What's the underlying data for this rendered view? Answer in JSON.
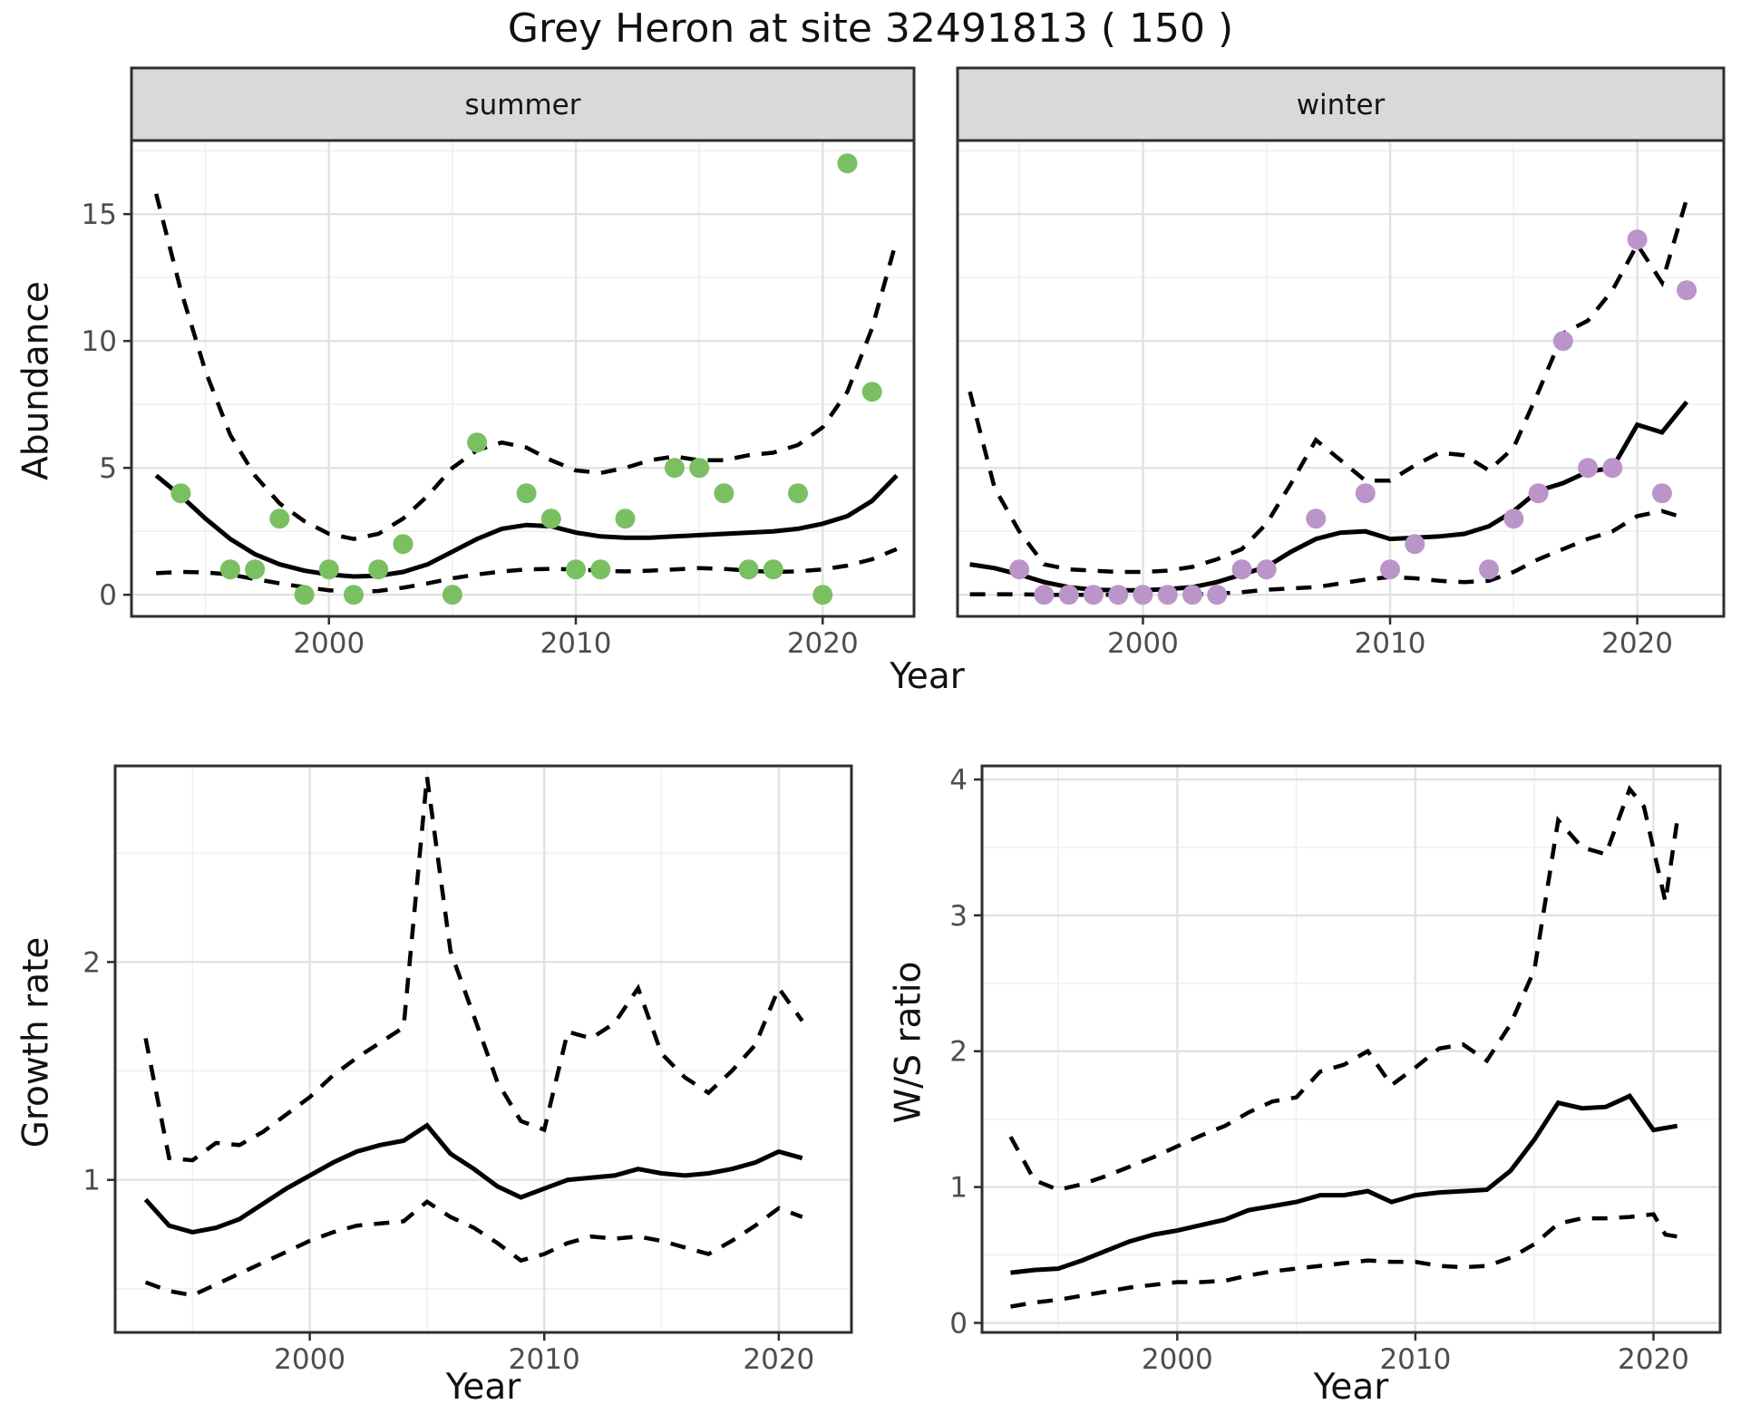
{
  "title": "Grey Heron at site 32491813 ( 150 )",
  "axis_labels": {
    "abundance": "Abundance",
    "growth": "Growth rate",
    "ws": "W/S ratio",
    "year": "Year"
  },
  "facets": {
    "summer": "summer",
    "winter": "winter"
  },
  "colors": {
    "summer_point": "#7ac062",
    "winter_point": "#bb95c9",
    "line": "#000000",
    "strip_bg": "#d9d9d9",
    "strip_text": "#141414",
    "grid_major": "#e2e2e2",
    "grid_minor": "#f0f0f0",
    "panel_border": "#2f2f2f",
    "tick_mark": "#2f2f2f",
    "tick_label": "#4d4d4d",
    "panel_bg": "#ffffff"
  },
  "chart_data": [
    {
      "id": "abundance_summer",
      "type": "line+scatter",
      "facet_label": "summer",
      "ylabel": "Abundance",
      "xlabel": "Year",
      "xlim": [
        1992,
        2023.7
      ],
      "ylim": [
        -0.85,
        17.9
      ],
      "xticks": [
        2000,
        2010,
        2020
      ],
      "xminor": [
        1995,
        2005,
        2015
      ],
      "yticks": [
        0,
        5,
        10,
        15
      ],
      "yminor": [
        2.5,
        7.5,
        12.5,
        17.5
      ],
      "show_ytick_labels": true,
      "point_color": "summer_point",
      "series": {
        "fit": {
          "style": "solid",
          "x": [
            1993,
            1994,
            1995,
            1996,
            1997,
            1998,
            1999,
            2000,
            2001,
            2002,
            2003,
            2004,
            2005,
            2006,
            2007,
            2008,
            2009,
            2010,
            2011,
            2012,
            2013,
            2014,
            2015,
            2016,
            2017,
            2018,
            2019,
            2020,
            2021,
            2022,
            2023
          ],
          "y": [
            4.7,
            3.9,
            3.0,
            2.2,
            1.6,
            1.2,
            0.95,
            0.8,
            0.72,
            0.75,
            0.9,
            1.2,
            1.7,
            2.2,
            2.6,
            2.75,
            2.7,
            2.45,
            2.3,
            2.25,
            2.25,
            2.3,
            2.35,
            2.4,
            2.45,
            2.5,
            2.6,
            2.8,
            3.1,
            3.7,
            4.7
          ]
        },
        "upper": {
          "style": "dashed",
          "x": [
            1993,
            1994,
            1995,
            1996,
            1997,
            1998,
            1999,
            2000,
            2001,
            2002,
            2003,
            2004,
            2005,
            2006,
            2007,
            2008,
            2009,
            2010,
            2011,
            2012,
            2013,
            2014,
            2015,
            2016,
            2017,
            2018,
            2019,
            2020,
            2021,
            2022,
            2023
          ],
          "y": [
            15.8,
            12.0,
            8.8,
            6.3,
            4.7,
            3.6,
            2.9,
            2.4,
            2.2,
            2.4,
            3.0,
            3.9,
            5.0,
            5.7,
            6.0,
            5.8,
            5.3,
            4.9,
            4.8,
            5.0,
            5.3,
            5.45,
            5.3,
            5.3,
            5.5,
            5.6,
            5.9,
            6.6,
            8.0,
            10.5,
            14.0
          ]
        },
        "lower": {
          "style": "dashed",
          "x": [
            1993,
            1994,
            1995,
            1996,
            1997,
            1998,
            1999,
            2000,
            2001,
            2002,
            2003,
            2004,
            2005,
            2006,
            2007,
            2008,
            2009,
            2010,
            2011,
            2012,
            2013,
            2014,
            2015,
            2016,
            2017,
            2018,
            2019,
            2020,
            2021,
            2022,
            2023
          ],
          "y": [
            0.85,
            0.9,
            0.88,
            0.8,
            0.62,
            0.45,
            0.3,
            0.18,
            0.12,
            0.15,
            0.28,
            0.45,
            0.65,
            0.8,
            0.92,
            1.0,
            1.02,
            1.0,
            0.95,
            0.92,
            0.95,
            1.0,
            1.05,
            1.02,
            0.95,
            0.9,
            0.92,
            1.0,
            1.15,
            1.4,
            1.8
          ]
        }
      },
      "points": [
        [
          1994,
          4
        ],
        [
          1996,
          1
        ],
        [
          1997,
          1
        ],
        [
          1998,
          3
        ],
        [
          1999,
          0
        ],
        [
          2000,
          1
        ],
        [
          2001,
          0
        ],
        [
          2002,
          1
        ],
        [
          2003,
          2
        ],
        [
          2005,
          0
        ],
        [
          2006,
          6
        ],
        [
          2008,
          4
        ],
        [
          2009,
          3
        ],
        [
          2010,
          1
        ],
        [
          2011,
          1
        ],
        [
          2012,
          3
        ],
        [
          2014,
          5
        ],
        [
          2015,
          5
        ],
        [
          2016,
          4
        ],
        [
          2017,
          1
        ],
        [
          2018,
          1
        ],
        [
          2019,
          4
        ],
        [
          2020,
          0
        ],
        [
          2021,
          17
        ],
        [
          2022,
          8
        ]
      ]
    },
    {
      "id": "abundance_winter",
      "type": "line+scatter",
      "facet_label": "winter",
      "ylabel": "Abundance",
      "xlabel": "Year",
      "xlim": [
        1992.5,
        2023.5
      ],
      "ylim": [
        -0.85,
        17.9
      ],
      "xticks": [
        2000,
        2010,
        2020
      ],
      "xminor": [
        1995,
        2005,
        2015
      ],
      "yticks": [
        0,
        5,
        10,
        15
      ],
      "yminor": [
        2.5,
        7.5,
        12.5,
        17.5
      ],
      "show_ytick_labels": false,
      "point_color": "winter_point",
      "series": {
        "fit": {
          "style": "solid",
          "x": [
            1993,
            1994,
            1995,
            1996,
            1997,
            1998,
            1999,
            2000,
            2001,
            2002,
            2003,
            2004,
            2005,
            2006,
            2007,
            2008,
            2009,
            2010,
            2011,
            2012,
            2013,
            2014,
            2015,
            2016,
            2017,
            2018,
            2019,
            2020,
            2021,
            2022
          ],
          "y": [
            1.2,
            1.05,
            0.8,
            0.5,
            0.3,
            0.2,
            0.18,
            0.18,
            0.22,
            0.3,
            0.5,
            0.8,
            1.1,
            1.7,
            2.2,
            2.45,
            2.5,
            2.2,
            2.25,
            2.3,
            2.4,
            2.7,
            3.3,
            4.1,
            4.4,
            4.85,
            5.0,
            6.7,
            6.4,
            7.6
          ]
        },
        "upper": {
          "style": "dashed",
          "x": [
            1993,
            1994,
            1995,
            1996,
            1997,
            1998,
            1999,
            2000,
            2001,
            2002,
            2003,
            2004,
            2005,
            2006,
            2007,
            2008,
            2009,
            2010,
            2011,
            2012,
            2013,
            2014,
            2015,
            2016,
            2017,
            2018,
            2019,
            2020,
            2021,
            2022
          ],
          "y": [
            8.0,
            4.2,
            2.5,
            1.2,
            1.0,
            0.95,
            0.9,
            0.9,
            0.95,
            1.1,
            1.4,
            1.8,
            2.8,
            4.4,
            6.1,
            5.3,
            4.5,
            4.5,
            5.1,
            5.6,
            5.5,
            4.9,
            5.8,
            8.0,
            10.3,
            10.8,
            12.0,
            13.8,
            12.3,
            15.6
          ]
        },
        "lower": {
          "style": "dashed",
          "x": [
            1993,
            1994,
            1995,
            1996,
            1997,
            1998,
            1999,
            2000,
            2001,
            2002,
            2003,
            2004,
            2005,
            2006,
            2007,
            2008,
            2009,
            2010,
            2011,
            2012,
            2013,
            2014,
            2015,
            2016,
            2017,
            2018,
            2019,
            2020,
            2021,
            2022
          ],
          "y": [
            0.02,
            0.02,
            0.02,
            0,
            0,
            0,
            0,
            0,
            0,
            0.02,
            0.05,
            0.1,
            0.2,
            0.25,
            0.3,
            0.45,
            0.6,
            0.7,
            0.65,
            0.55,
            0.5,
            0.55,
            0.9,
            1.4,
            1.8,
            2.2,
            2.5,
            3.1,
            3.3,
            3.0
          ]
        }
      },
      "points": [
        [
          1995,
          1
        ],
        [
          1996,
          0
        ],
        [
          1997,
          0
        ],
        [
          1998,
          0
        ],
        [
          1999,
          0
        ],
        [
          2000,
          0
        ],
        [
          2001,
          0
        ],
        [
          2002,
          0
        ],
        [
          2003,
          0
        ],
        [
          2004,
          1
        ],
        [
          2005,
          1
        ],
        [
          2007,
          3
        ],
        [
          2009,
          4
        ],
        [
          2010,
          1
        ],
        [
          2011,
          2
        ],
        [
          2014,
          1
        ],
        [
          2015,
          3
        ],
        [
          2016,
          4
        ],
        [
          2017,
          10
        ],
        [
          2018,
          5
        ],
        [
          2019,
          5
        ],
        [
          2020,
          14
        ],
        [
          2021,
          4
        ],
        [
          2022,
          12
        ]
      ]
    },
    {
      "id": "growth_rate",
      "type": "line",
      "facet_label": null,
      "ylabel": "Growth rate",
      "xlabel": "Year",
      "xlim": [
        1991.7,
        2023.1
      ],
      "ylim": [
        0.3,
        2.9
      ],
      "xticks": [
        2000,
        2010,
        2020
      ],
      "xminor": [
        1995,
        2005,
        2015
      ],
      "yticks": [
        1,
        2
      ],
      "yminor": [
        0.5,
        1.5,
        2.5
      ],
      "show_ytick_labels": true,
      "point_color": null,
      "series": {
        "fit": {
          "style": "solid",
          "x": [
            1993,
            1994,
            1995,
            1996,
            1997,
            1998,
            1999,
            2000,
            2001,
            2002,
            2003,
            2004,
            2005,
            2006,
            2007,
            2008,
            2009,
            2010,
            2011,
            2012,
            2013,
            2014,
            2015,
            2016,
            2017,
            2018,
            2019,
            2020,
            2021
          ],
          "y": [
            0.91,
            0.79,
            0.76,
            0.78,
            0.82,
            0.89,
            0.96,
            1.02,
            1.08,
            1.13,
            1.16,
            1.18,
            1.25,
            1.12,
            1.05,
            0.97,
            0.92,
            0.96,
            1.0,
            1.01,
            1.02,
            1.05,
            1.03,
            1.02,
            1.03,
            1.05,
            1.08,
            1.13,
            1.1
          ]
        },
        "upper": {
          "style": "dashed",
          "x": [
            1993,
            1994,
            1995,
            1996,
            1997,
            1998,
            1999,
            2000,
            2001,
            2002,
            2003,
            2004,
            2005,
            2006,
            2007,
            2008,
            2009,
            2010,
            2011,
            2012,
            2013,
            2014,
            2015,
            2016,
            2017,
            2018,
            2019,
            2020,
            2021
          ],
          "y": [
            1.65,
            1.1,
            1.09,
            1.17,
            1.16,
            1.22,
            1.3,
            1.38,
            1.48,
            1.56,
            1.63,
            1.7,
            2.85,
            2.05,
            1.75,
            1.45,
            1.27,
            1.23,
            1.68,
            1.65,
            1.72,
            1.88,
            1.58,
            1.47,
            1.4,
            1.5,
            1.62,
            1.88,
            1.73
          ]
        },
        "lower": {
          "style": "dashed",
          "x": [
            1993,
            1994,
            1995,
            1996,
            1997,
            1998,
            1999,
            2000,
            2001,
            2002,
            2003,
            2004,
            2005,
            2006,
            2007,
            2008,
            2009,
            2010,
            2011,
            2012,
            2013,
            2014,
            2015,
            2016,
            2017,
            2018,
            2019,
            2020,
            2021
          ],
          "y": [
            0.53,
            0.49,
            0.47,
            0.52,
            0.57,
            0.62,
            0.67,
            0.72,
            0.76,
            0.79,
            0.8,
            0.81,
            0.9,
            0.83,
            0.78,
            0.71,
            0.63,
            0.66,
            0.71,
            0.74,
            0.73,
            0.74,
            0.72,
            0.69,
            0.66,
            0.72,
            0.79,
            0.87,
            0.83
          ]
        }
      },
      "points": []
    },
    {
      "id": "ws_ratio",
      "type": "line",
      "facet_label": null,
      "ylabel": "W/S ratio",
      "xlabel": "Year",
      "xlim": [
        1991.8,
        2022.8
      ],
      "ylim": [
        -0.07,
        4.1
      ],
      "xticks": [
        2000,
        2010,
        2020
      ],
      "xminor": [
        1995,
        2005,
        2015
      ],
      "yticks": [
        0,
        1,
        2,
        3,
        4
      ],
      "yminor": [
        0.5,
        1.5,
        2.5,
        3.5
      ],
      "show_ytick_labels": true,
      "point_color": null,
      "series": {
        "fit": {
          "style": "solid",
          "x": [
            1993,
            1994,
            1995,
            1996,
            1997,
            1998,
            1999,
            2000,
            2001,
            2002,
            2003,
            2004,
            2005,
            2006,
            2007,
            2008,
            2009,
            2010,
            2011,
            2012,
            2013,
            2014,
            2015,
            2016,
            2017,
            2018,
            2019,
            2020,
            2021
          ],
          "y": [
            0.37,
            0.39,
            0.4,
            0.46,
            0.53,
            0.6,
            0.65,
            0.68,
            0.72,
            0.76,
            0.83,
            0.86,
            0.89,
            0.94,
            0.94,
            0.97,
            0.89,
            0.94,
            0.96,
            0.97,
            0.98,
            1.12,
            1.35,
            1.62,
            1.58,
            1.59,
            1.67,
            1.42,
            1.45
          ]
        },
        "upper": {
          "style": "dashed",
          "x": [
            1993,
            1994,
            1995,
            1996,
            1997,
            1998,
            1999,
            2000,
            2001,
            2002,
            2003,
            2004,
            2005,
            2006,
            2007,
            2008,
            2009,
            2010,
            2011,
            2012,
            2013,
            2014,
            2015,
            2016,
            2017,
            2018,
            2019,
            2019.6,
            2020.5,
            2021
          ],
          "y": [
            1.37,
            1.05,
            0.98,
            1.02,
            1.08,
            1.15,
            1.22,
            1.3,
            1.38,
            1.45,
            1.55,
            1.63,
            1.66,
            1.85,
            1.9,
            2.0,
            1.75,
            1.88,
            2.02,
            2.05,
            1.93,
            2.2,
            2.6,
            3.7,
            3.5,
            3.45,
            3.93,
            3.8,
            3.1,
            3.7
          ]
        },
        "lower": {
          "style": "dashed",
          "x": [
            1993,
            1994,
            1995,
            1996,
            1997,
            1998,
            1999,
            2000,
            2001,
            2002,
            2003,
            2004,
            2005,
            2006,
            2007,
            2008,
            2009,
            2010,
            2011,
            2012,
            2013,
            2014,
            2015,
            2016,
            2017,
            2018,
            2019,
            2020,
            2020.5,
            2021.2
          ],
          "y": [
            0.12,
            0.15,
            0.17,
            0.2,
            0.23,
            0.26,
            0.28,
            0.3,
            0.3,
            0.31,
            0.35,
            0.38,
            0.4,
            0.42,
            0.44,
            0.46,
            0.45,
            0.45,
            0.42,
            0.41,
            0.42,
            0.48,
            0.58,
            0.73,
            0.77,
            0.77,
            0.78,
            0.8,
            0.65,
            0.63
          ]
        }
      },
      "points": []
    }
  ]
}
